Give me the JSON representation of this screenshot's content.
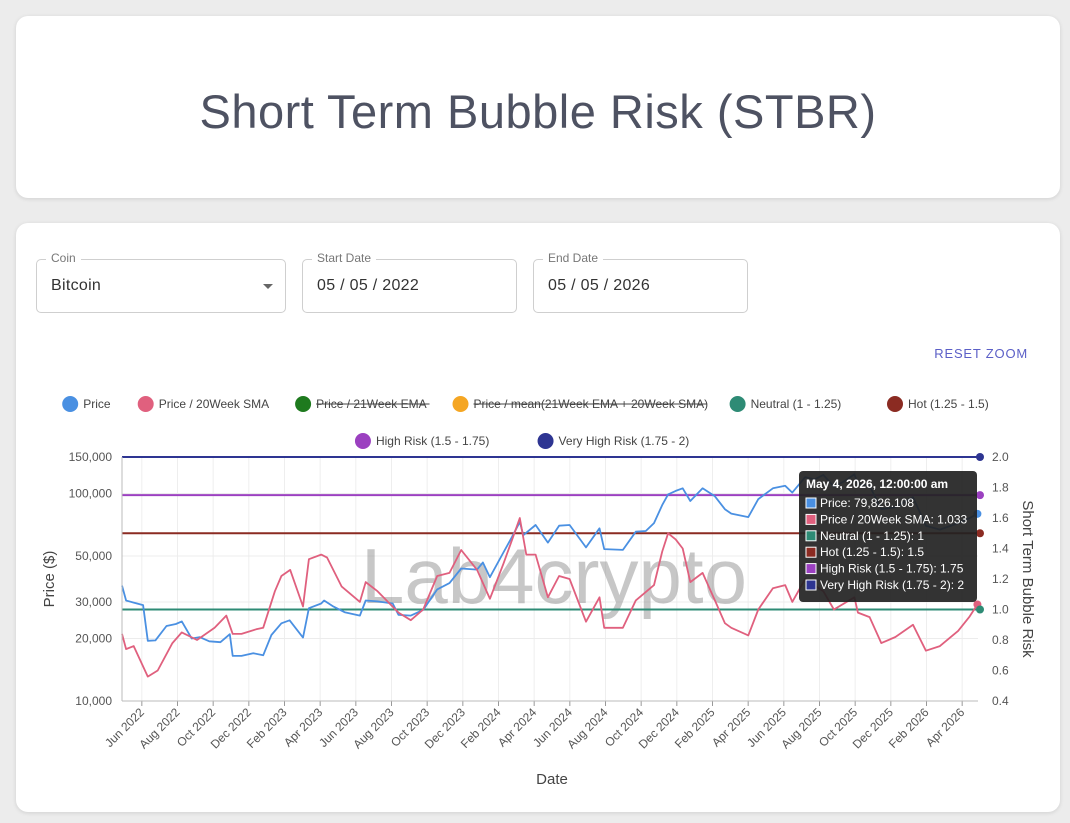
{
  "page": {
    "title": "Short Term Bubble Risk (STBR)"
  },
  "controls": {
    "coin": {
      "label": "Coin",
      "value": "Bitcoin"
    },
    "start_date": {
      "label": "Start Date",
      "value": "05 / 05 / 2022"
    },
    "end_date": {
      "label": "End Date",
      "value": "05 / 05 / 2026"
    },
    "reset_zoom": "RESET ZOOM"
  },
  "watermark": "Lab4crypto",
  "chart_data": {
    "type": "line",
    "xlabel": "Date",
    "ylabel": "Price ($)",
    "y2label": "Short Term Bubble Risk",
    "yscale": "log",
    "ylim": [
      10000,
      150000
    ],
    "y2lim": [
      0.4,
      2.0
    ],
    "xlim": [
      "2022-05-05",
      "2026-05-05"
    ],
    "yticks": [
      "10,000",
      "20,000",
      "30,000",
      "50,000",
      "100,000",
      "150,000"
    ],
    "y2ticks": [
      "0.4",
      "0.6",
      "0.8",
      "1.0",
      "1.2",
      "1.4",
      "1.6",
      "1.8",
      "2.0"
    ],
    "xticks": [
      "Jun 2022",
      "Aug 2022",
      "Oct 2022",
      "Dec 2022",
      "Feb 2023",
      "Apr 2023",
      "Jun 2023",
      "Aug 2023",
      "Oct 2023",
      "Dec 2023",
      "Feb 2024",
      "Apr 2024",
      "Jun 2024",
      "Aug 2024",
      "Oct 2024",
      "Dec 2024",
      "Feb 2025",
      "Apr 2025",
      "Jun 2025",
      "Aug 2025",
      "Oct 2025",
      "Dec 2025",
      "Feb 2026",
      "Apr 2026"
    ],
    "legend": [
      {
        "name": "Price",
        "color": "#4a90e2",
        "hidden": false
      },
      {
        "name": "Price / 20Week SMA",
        "color": "#e0607e",
        "hidden": false
      },
      {
        "name": "Price / 21Week EMA",
        "color": "#1e7a1e",
        "hidden": true
      },
      {
        "name": "Price / mean(21Week EMA + 20Week SMA)",
        "color": "#f5a623",
        "hidden": true
      },
      {
        "name": "Neutral (1 - 1.25)",
        "color": "#2e8b75",
        "hidden": false
      },
      {
        "name": "Hot (1.25 - 1.5)",
        "color": "#8b2b22",
        "hidden": false
      },
      {
        "name": "High Risk (1.5 - 1.75)",
        "color": "#9b40c0",
        "hidden": false
      },
      {
        "name": "Very High Risk (1.75 - 2)",
        "color": "#2e3592",
        "hidden": false
      }
    ],
    "thresholds": [
      {
        "name": "Neutral (1 - 1.25)",
        "value": 1.0,
        "color": "#2e8b75"
      },
      {
        "name": "Hot (1.25 - 1.5)",
        "value": 1.5,
        "color": "#8b2b22"
      },
      {
        "name": "High Risk (1.5 - 1.75)",
        "value": 1.75,
        "color": "#9b40c0"
      },
      {
        "name": "Very High Risk (1.75 - 2)",
        "value": 2.0,
        "color": "#2e3592"
      }
    ],
    "series": [
      {
        "name": "Price",
        "axis": "left",
        "color": "#4a90e2",
        "points": [
          [
            "2022-05-05",
            36000
          ],
          [
            "2022-05-12",
            30500
          ],
          [
            "2022-05-25",
            29800
          ],
          [
            "2022-06-10",
            29000
          ],
          [
            "2022-06-18",
            19500
          ],
          [
            "2022-07-01",
            19600
          ],
          [
            "2022-07-20",
            23000
          ],
          [
            "2022-08-05",
            23500
          ],
          [
            "2022-08-15",
            24200
          ],
          [
            "2022-09-01",
            20000
          ],
          [
            "2022-09-15",
            20300
          ],
          [
            "2022-10-01",
            19400
          ],
          [
            "2022-10-20",
            19200
          ],
          [
            "2022-11-05",
            21000
          ],
          [
            "2022-11-10",
            16500
          ],
          [
            "2022-11-25",
            16500
          ],
          [
            "2022-12-15",
            17000
          ],
          [
            "2023-01-01",
            16600
          ],
          [
            "2023-01-15",
            20800
          ],
          [
            "2023-02-01",
            23700
          ],
          [
            "2023-02-15",
            24500
          ],
          [
            "2023-03-10",
            20200
          ],
          [
            "2023-03-20",
            28000
          ],
          [
            "2023-04-10",
            29500
          ],
          [
            "2023-04-15",
            30500
          ],
          [
            "2023-05-01",
            28500
          ],
          [
            "2023-05-20",
            26800
          ],
          [
            "2023-06-15",
            25800
          ],
          [
            "2023-06-25",
            30500
          ],
          [
            "2023-07-15",
            30200
          ],
          [
            "2023-08-10",
            29500
          ],
          [
            "2023-08-20",
            26000
          ],
          [
            "2023-09-10",
            25800
          ],
          [
            "2023-10-01",
            27500
          ],
          [
            "2023-10-25",
            34500
          ],
          [
            "2023-11-15",
            37000
          ],
          [
            "2023-12-05",
            43500
          ],
          [
            "2024-01-01",
            43000
          ],
          [
            "2024-01-11",
            46500
          ],
          [
            "2024-01-23",
            39500
          ],
          [
            "2024-02-15",
            52000
          ],
          [
            "2024-03-01",
            62000
          ],
          [
            "2024-03-14",
            73000
          ],
          [
            "2024-03-20",
            63000
          ],
          [
            "2024-04-10",
            70500
          ],
          [
            "2024-05-01",
            58000
          ],
          [
            "2024-05-20",
            70000
          ],
          [
            "2024-06-07",
            70500
          ],
          [
            "2024-07-05",
            55000
          ],
          [
            "2024-07-28",
            68000
          ],
          [
            "2024-08-05",
            54000
          ],
          [
            "2024-09-06",
            53500
          ],
          [
            "2024-09-28",
            65500
          ],
          [
            "2024-10-15",
            66000
          ],
          [
            "2024-10-29",
            72000
          ],
          [
            "2024-11-12",
            88000
          ],
          [
            "2024-11-22",
            99000
          ],
          [
            "2024-12-05",
            103000
          ],
          [
            "2024-12-17",
            106000
          ],
          [
            "2024-12-30",
            92000
          ],
          [
            "2025-01-20",
            106000
          ],
          [
            "2025-02-10",
            97000
          ],
          [
            "2025-02-27",
            84000
          ],
          [
            "2025-03-10",
            80000
          ],
          [
            "2025-04-08",
            77000
          ],
          [
            "2025-04-25",
            94000
          ],
          [
            "2025-05-20",
            106000
          ],
          [
            "2025-06-10",
            109000
          ],
          [
            "2025-06-22",
            101000
          ],
          [
            "2025-07-14",
            120000
          ],
          [
            "2025-07-30",
            117000
          ],
          [
            "2025-08-14",
            123000
          ],
          [
            "2025-09-01",
            108000
          ],
          [
            "2025-09-20",
            115000
          ],
          [
            "2025-10-06",
            124000
          ],
          [
            "2025-10-12",
            111000
          ],
          [
            "2025-11-01",
            109000
          ],
          [
            "2025-11-21",
            84000
          ],
          [
            "2025-12-15",
            86000
          ],
          [
            "2026-01-14",
            96000
          ],
          [
            "2026-02-05",
            70000
          ],
          [
            "2026-03-01",
            67000
          ],
          [
            "2026-04-01",
            72000
          ],
          [
            "2026-04-20",
            76000
          ],
          [
            "2026-05-04",
            79826.108
          ]
        ]
      },
      {
        "name": "Price / 20Week SMA",
        "axis": "right",
        "color": "#e0607e",
        "points": [
          [
            "2022-05-05",
            0.84
          ],
          [
            "2022-05-12",
            0.74
          ],
          [
            "2022-05-25",
            0.76
          ],
          [
            "2022-06-18",
            0.56
          ],
          [
            "2022-07-05",
            0.6
          ],
          [
            "2022-07-30",
            0.78
          ],
          [
            "2022-08-15",
            0.85
          ],
          [
            "2022-09-10",
            0.8
          ],
          [
            "2022-10-10",
            0.88
          ],
          [
            "2022-10-30",
            0.96
          ],
          [
            "2022-11-10",
            0.84
          ],
          [
            "2022-11-25",
            0.84
          ],
          [
            "2022-12-20",
            0.87
          ],
          [
            "2023-01-01",
            0.88
          ],
          [
            "2023-01-21",
            1.12
          ],
          [
            "2023-02-01",
            1.22
          ],
          [
            "2023-02-16",
            1.26
          ],
          [
            "2023-03-10",
            1.02
          ],
          [
            "2023-03-20",
            1.33
          ],
          [
            "2023-04-10",
            1.36
          ],
          [
            "2023-04-20",
            1.34
          ],
          [
            "2023-05-15",
            1.15
          ],
          [
            "2023-06-15",
            1.05
          ],
          [
            "2023-06-25",
            1.18
          ],
          [
            "2023-07-15",
            1.12
          ],
          [
            "2023-08-20",
            0.98
          ],
          [
            "2023-09-10",
            0.93
          ],
          [
            "2023-10-01",
            1.0
          ],
          [
            "2023-10-25",
            1.22
          ],
          [
            "2023-11-15",
            1.24
          ],
          [
            "2023-12-05",
            1.39
          ],
          [
            "2024-01-01",
            1.26
          ],
          [
            "2024-01-23",
            1.07
          ],
          [
            "2024-02-15",
            1.3
          ],
          [
            "2024-03-01",
            1.46
          ],
          [
            "2024-03-14",
            1.6
          ],
          [
            "2024-03-25",
            1.36
          ],
          [
            "2024-04-10",
            1.36
          ],
          [
            "2024-05-01",
            1.08
          ],
          [
            "2024-05-20",
            1.22
          ],
          [
            "2024-06-07",
            1.2
          ],
          [
            "2024-07-05",
            0.92
          ],
          [
            "2024-07-28",
            1.08
          ],
          [
            "2024-08-05",
            0.88
          ],
          [
            "2024-09-06",
            0.88
          ],
          [
            "2024-09-28",
            1.06
          ],
          [
            "2024-10-29",
            1.16
          ],
          [
            "2024-11-12",
            1.38
          ],
          [
            "2024-11-22",
            1.5
          ],
          [
            "2024-12-05",
            1.46
          ],
          [
            "2024-12-17",
            1.4
          ],
          [
            "2024-12-30",
            1.18
          ],
          [
            "2025-01-20",
            1.24
          ],
          [
            "2025-02-10",
            1.06
          ],
          [
            "2025-02-27",
            0.91
          ],
          [
            "2025-03-10",
            0.88
          ],
          [
            "2025-04-08",
            0.83
          ],
          [
            "2025-04-25",
            1.0
          ],
          [
            "2025-05-20",
            1.14
          ],
          [
            "2025-06-10",
            1.16
          ],
          [
            "2025-06-22",
            1.05
          ],
          [
            "2025-07-14",
            1.2
          ],
          [
            "2025-08-14",
            1.12
          ],
          [
            "2025-09-01",
            1.0
          ],
          [
            "2025-10-06",
            1.08
          ],
          [
            "2025-10-12",
            0.98
          ],
          [
            "2025-11-01",
            0.95
          ],
          [
            "2025-11-21",
            0.78
          ],
          [
            "2025-12-15",
            0.82
          ],
          [
            "2026-01-14",
            0.9
          ],
          [
            "2026-02-05",
            0.73
          ],
          [
            "2026-03-01",
            0.76
          ],
          [
            "2026-04-01",
            0.86
          ],
          [
            "2026-04-20",
            0.95
          ],
          [
            "2026-05-04",
            1.033
          ]
        ]
      }
    ],
    "tooltip": {
      "title": "May 4, 2026, 12:00:00 am",
      "rows": [
        {
          "text": "Price: 79,826.108",
          "color": "#4a90e2"
        },
        {
          "text": "Price / 20Week SMA: 1.033",
          "color": "#e0607e"
        },
        {
          "text": "Neutral (1 - 1.25): 1",
          "color": "#2e8b75"
        },
        {
          "text": "Hot (1.25 - 1.5): 1.5",
          "color": "#8b2b22"
        },
        {
          "text": "High Risk (1.5 - 1.75): 1.75",
          "color": "#9b40c0"
        },
        {
          "text": "Very High Risk (1.75 - 2): 2",
          "color": "#2e3592"
        }
      ]
    }
  }
}
